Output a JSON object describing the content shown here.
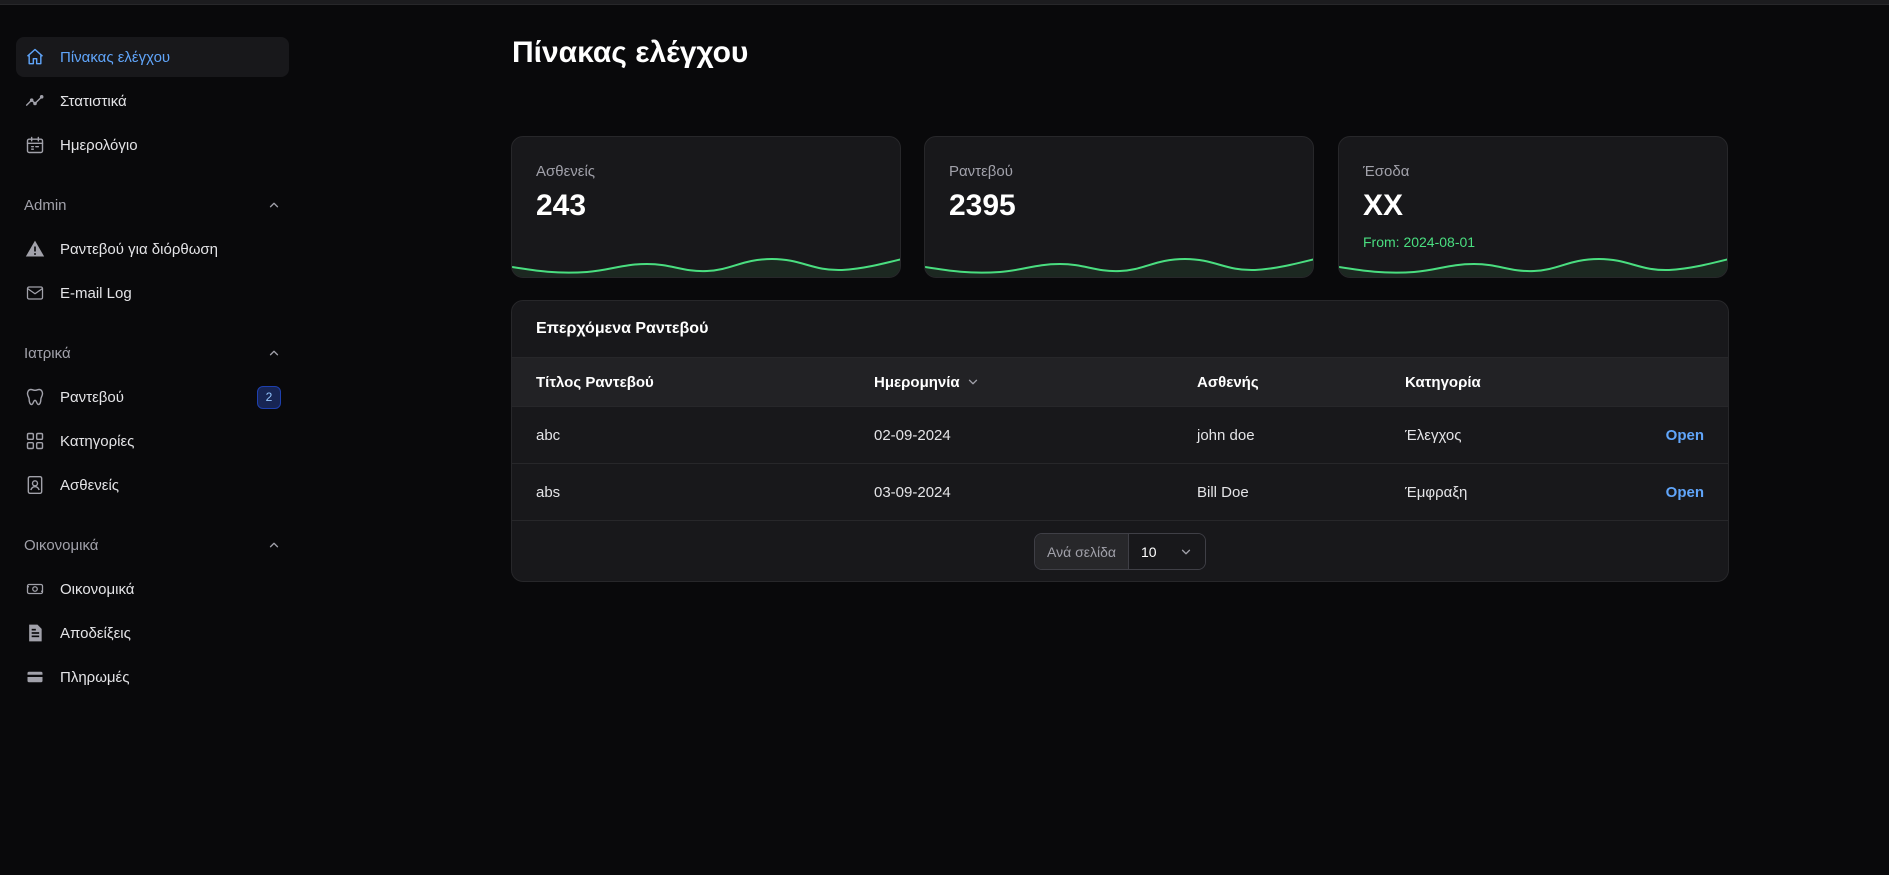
{
  "sidebar": {
    "top_items": [
      {
        "label": "Πίνακας ελέγχου",
        "icon": "home-icon"
      },
      {
        "label": "Στατιστικά",
        "icon": "trend-icon"
      },
      {
        "label": "Ημερολόγιο",
        "icon": "calendar-icon"
      }
    ],
    "groups": [
      {
        "label": "Admin",
        "items": [
          {
            "label": "Ραντεβού για διόρθωση",
            "icon": "warning-icon"
          },
          {
            "label": "E-mail Log",
            "icon": "envelope-icon"
          }
        ]
      },
      {
        "label": "Ιατρικά",
        "items": [
          {
            "label": "Ραντεβού",
            "icon": "tooth-icon",
            "badge": "2"
          },
          {
            "label": "Κατηγορίες",
            "icon": "grid-icon"
          },
          {
            "label": "Ασθενείς",
            "icon": "id-card-icon"
          }
        ]
      },
      {
        "label": "Οικονομικά",
        "items": [
          {
            "label": "Οικονομικά",
            "icon": "banknote-icon"
          },
          {
            "label": "Αποδείξεις",
            "icon": "receipt-icon"
          },
          {
            "label": "Πληρωμές",
            "icon": "credit-card-icon"
          }
        ]
      }
    ]
  },
  "page": {
    "title": "Πίνακας ελέγχου"
  },
  "stats": [
    {
      "label": "Ασθενείς",
      "value": "243",
      "desc": ""
    },
    {
      "label": "Ραντεβού",
      "value": "2395",
      "desc": ""
    },
    {
      "label": "Έσοδα",
      "value": "XX",
      "desc": "From: 2024-08-01"
    }
  ],
  "table": {
    "heading": "Επερχόμενα Ραντεβού",
    "columns": [
      "Τίτλος Ραντεβού",
      "Ημερομηνία",
      "Ασθενής",
      "Κατηγορία"
    ],
    "rows": [
      {
        "title": "abc",
        "date": "02-09-2024",
        "patient": "john doe",
        "category": "Έλεγχος",
        "action": "Open"
      },
      {
        "title": "abs",
        "date": "03-09-2024",
        "patient": "Bill Doe",
        "category": "Έμφραξη",
        "action": "Open"
      }
    ],
    "pagination": {
      "label": "Ανά σελίδα",
      "value": "10"
    }
  },
  "colors": {
    "accent": "#60a5fa",
    "success": "#4ade80",
    "background": "#09090b",
    "card": "#18181b"
  }
}
